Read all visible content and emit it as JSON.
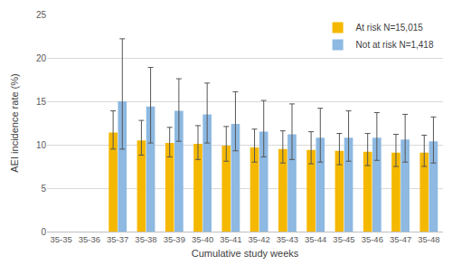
{
  "chart_data": {
    "type": "bar",
    "x_label": "Cumulative study weeks",
    "y_label": "AEI incidence rate (%)",
    "categories": [
      "35-35",
      "35-36",
      "35-37",
      "35-38",
      "35-39",
      "35-40",
      "35-41",
      "35-42",
      "35-43",
      "35-44",
      "35-45",
      "35-46",
      "35-47",
      "35-48"
    ],
    "series": [
      {
        "name": "At risk N=15,015",
        "color": "#F5B800",
        "values": [
          null,
          null,
          11.4,
          10.5,
          10.2,
          10.1,
          9.9,
          9.7,
          9.5,
          9.4,
          9.3,
          9.2,
          9.1,
          9.1
        ],
        "ci_upper": [
          null,
          null,
          13.9,
          12.8,
          12.0,
          12.2,
          12.1,
          11.8,
          11.6,
          11.5,
          11.3,
          11.3,
          11.2,
          11.1
        ],
        "ci_lower": [
          null,
          null,
          9.5,
          8.8,
          8.6,
          8.3,
          8.1,
          8.0,
          7.9,
          7.8,
          7.7,
          7.6,
          7.5,
          7.5
        ]
      },
      {
        "name": "Not at risk N=1,418",
        "color": "#8DB9E2",
        "values": [
          null,
          null,
          15.0,
          14.4,
          13.9,
          13.5,
          12.4,
          11.5,
          11.2,
          10.8,
          10.8,
          10.8,
          10.6,
          10.4
        ],
        "ci_upper": [
          null,
          null,
          22.2,
          18.9,
          17.6,
          17.1,
          16.1,
          15.1,
          14.7,
          14.2,
          13.9,
          13.7,
          13.5,
          13.2
        ],
        "ci_lower": [
          null,
          null,
          9.5,
          10.2,
          10.4,
          10.2,
          9.3,
          8.6,
          8.3,
          8.0,
          8.1,
          8.2,
          8.0,
          7.9
        ]
      }
    ],
    "ylim": [
      0,
      25
    ],
    "yticks": [
      0,
      5,
      10,
      15,
      20,
      25
    ],
    "grid": true,
    "legend": "top-right"
  }
}
